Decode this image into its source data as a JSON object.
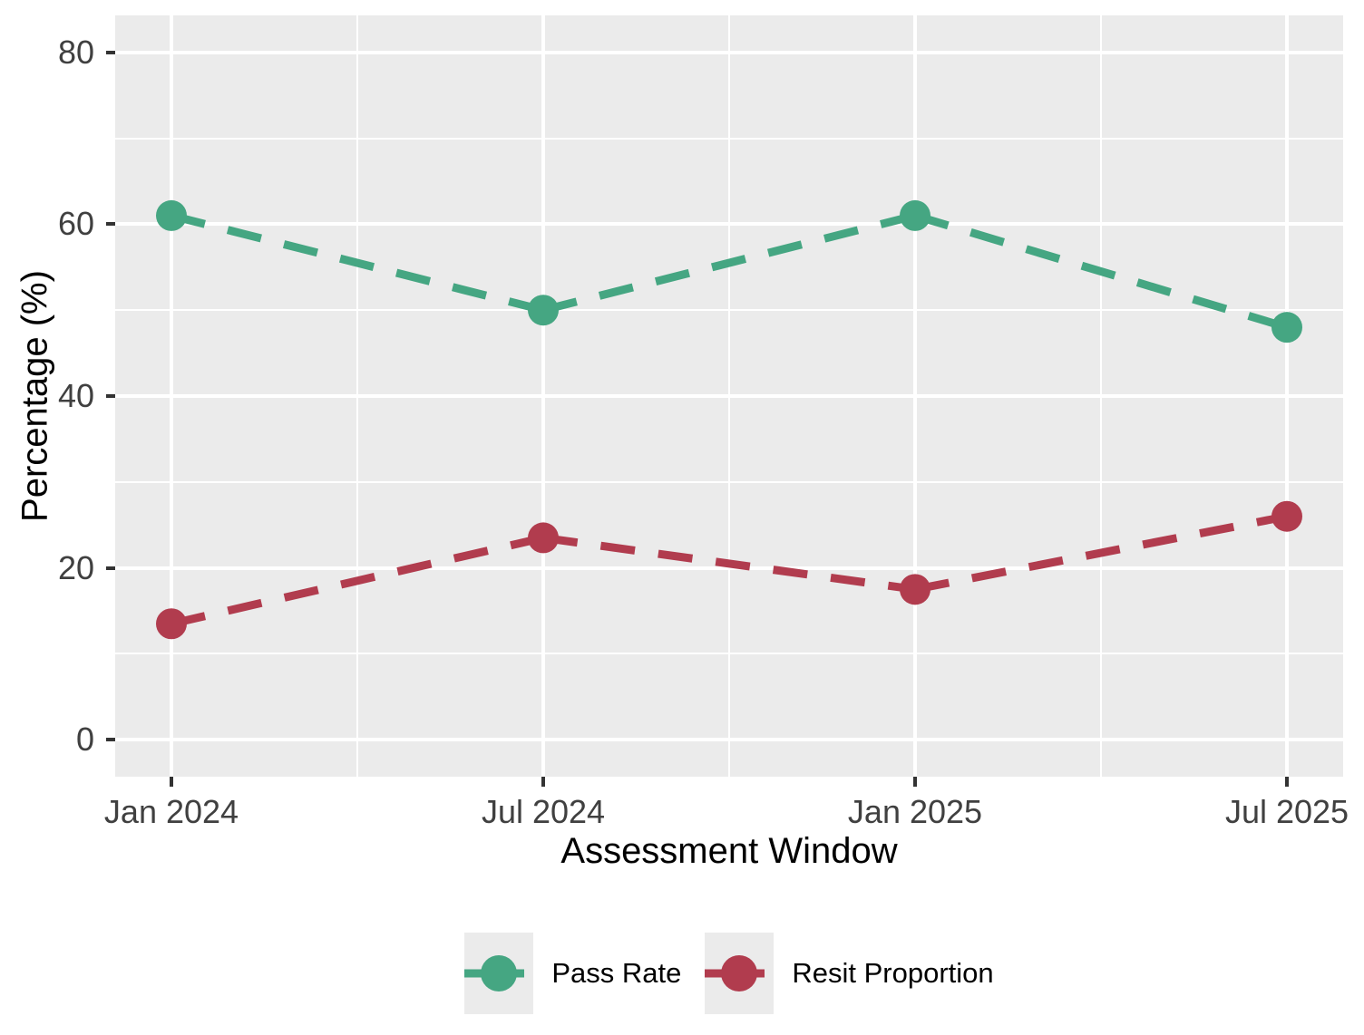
{
  "figure": {
    "background": "#FFFFFF",
    "panel_background": "#EBEBEB",
    "grid_color": "#FFFFFF",
    "tick_label_color": "#404040",
    "axis_title_color": "#000000"
  },
  "chart_data": {
    "type": "line",
    "title": "",
    "xlabel": "Assessment Window",
    "ylabel": "Percentage (%)",
    "categories": [
      "Jan 2024",
      "Jul 2024",
      "Jan 2025",
      "Jul 2025"
    ],
    "series": [
      {
        "name": "Pass Rate",
        "color": "#45A682",
        "values": [
          61,
          50,
          61,
          48
        ]
      },
      {
        "name": "Resit Proportion",
        "color": "#B13C4E",
        "values": [
          13.5,
          23.5,
          17.5,
          26
        ]
      }
    ],
    "yticks": [
      0,
      20,
      40,
      60,
      80
    ],
    "ylim": [
      0,
      80
    ],
    "grid": true,
    "legend_position": "bottom",
    "line_style": "dashed",
    "marker": "circle"
  }
}
